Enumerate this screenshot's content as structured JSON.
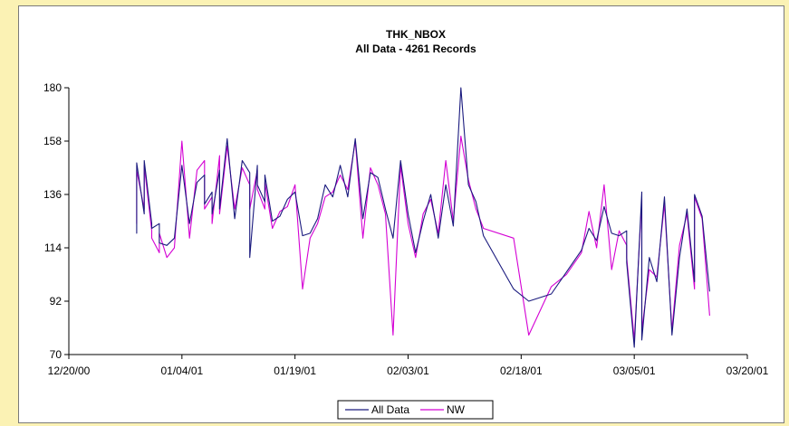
{
  "colors": {
    "background": "#fbf2b4",
    "all_data": "#1a1a7e",
    "nw": "#d400d4"
  },
  "chart_data": {
    "type": "line",
    "title": "THK_NBOX",
    "subtitle": "All Data - 4261 Records",
    "xlabel": "",
    "ylabel": "",
    "x_ticks": [
      "12/20/00",
      "01/04/01",
      "01/19/01",
      "02/03/01",
      "02/18/01",
      "03/05/01",
      "03/20/01"
    ],
    "y_ticks": [
      "70",
      "92",
      "114",
      "136",
      "158",
      "180"
    ],
    "xlim": [
      "2000-12-20",
      "2001-03-20"
    ],
    "ylim": [
      70,
      180
    ],
    "grid": false,
    "legend_position": "bottom",
    "series": [
      {
        "name": "All Data",
        "color": "#1a1a7e",
        "x": [
          "2000-12-29",
          "2000-12-29",
          "2000-12-29",
          "2000-12-30",
          "2000-12-30",
          "2000-12-31",
          "2000-12-31",
          "2001-01-01",
          "2001-01-01",
          "2001-01-02",
          "2001-01-03",
          "2001-01-04",
          "2001-01-05",
          "2001-01-06",
          "2001-01-07",
          "2001-01-07",
          "2001-01-08",
          "2001-01-08",
          "2001-01-09",
          "2001-01-09",
          "2001-01-10",
          "2001-01-11",
          "2001-01-12",
          "2001-01-13",
          "2001-01-13",
          "2001-01-14",
          "2001-01-14",
          "2001-01-15",
          "2001-01-15",
          "2001-01-16",
          "2001-01-17",
          "2001-01-18",
          "2001-01-19",
          "2001-01-20",
          "2001-01-21",
          "2001-01-22",
          "2001-01-23",
          "2001-01-24",
          "2001-01-25",
          "2001-01-26",
          "2001-01-27",
          "2001-01-28",
          "2001-01-29",
          "2001-01-30",
          "2001-01-31",
          "2001-02-01",
          "2001-02-02",
          "2001-02-03",
          "2001-02-04",
          "2001-02-05",
          "2001-02-06",
          "2001-02-07",
          "2001-02-08",
          "2001-02-09",
          "2001-02-10",
          "2001-02-11",
          "2001-02-12",
          "2001-02-13",
          "2001-02-17",
          "2001-02-19",
          "2001-02-22",
          "2001-02-24",
          "2001-02-26",
          "2001-02-27",
          "2001-02-28",
          "2001-03-01",
          "2001-03-02",
          "2001-03-03",
          "2001-03-04",
          "2001-03-04",
          "2001-03-05",
          "2001-03-06",
          "2001-03-06",
          "2001-03-07",
          "2001-03-08",
          "2001-03-09",
          "2001-03-10",
          "2001-03-11",
          "2001-03-12",
          "2001-03-13",
          "2001-03-13",
          "2001-03-14",
          "2001-03-15"
        ],
        "values": [
          140,
          120,
          149,
          128,
          150,
          124,
          122,
          124,
          116,
          115,
          118,
          148,
          124,
          141,
          144,
          132,
          137,
          128,
          146,
          130,
          159,
          126,
          150,
          145,
          110,
          148,
          140,
          133,
          144,
          125,
          127,
          134,
          137,
          119,
          120,
          126,
          140,
          135,
          148,
          135,
          159,
          126,
          145,
          143,
          130,
          118,
          150,
          128,
          112,
          125,
          136,
          118,
          140,
          123,
          180,
          140,
          133,
          119,
          97,
          92,
          95,
          104,
          113,
          122,
          117,
          131,
          120,
          119,
          121,
          108,
          73,
          137,
          76,
          110,
          100,
          135,
          78,
          110,
          130,
          100,
          136,
          127,
          96
        ]
      },
      {
        "name": "NW",
        "color": "#d400d4",
        "x": [
          "2000-12-29",
          "2000-12-29",
          "2000-12-29",
          "2000-12-30",
          "2000-12-30",
          "2000-12-31",
          "2000-12-31",
          "2001-01-01",
          "2001-01-01",
          "2001-01-02",
          "2001-01-03",
          "2001-01-04",
          "2001-01-05",
          "2001-01-06",
          "2001-01-07",
          "2001-01-07",
          "2001-01-08",
          "2001-01-08",
          "2001-01-09",
          "2001-01-09",
          "2001-01-10",
          "2001-01-11",
          "2001-01-12",
          "2001-01-13",
          "2001-01-13",
          "2001-01-14",
          "2001-01-14",
          "2001-01-15",
          "2001-01-15",
          "2001-01-16",
          "2001-01-17",
          "2001-01-18",
          "2001-01-19",
          "2001-01-20",
          "2001-01-21",
          "2001-01-22",
          "2001-01-23",
          "2001-01-24",
          "2001-01-25",
          "2001-01-26",
          "2001-01-27",
          "2001-01-28",
          "2001-01-29",
          "2001-01-30",
          "2001-01-31",
          "2001-02-01",
          "2001-02-02",
          "2001-02-03",
          "2001-02-04",
          "2001-02-05",
          "2001-02-06",
          "2001-02-07",
          "2001-02-08",
          "2001-02-09",
          "2001-02-10",
          "2001-02-11",
          "2001-02-12",
          "2001-02-13",
          "2001-02-17",
          "2001-02-19",
          "2001-02-22",
          "2001-02-24",
          "2001-02-26",
          "2001-02-27",
          "2001-02-28",
          "2001-03-01",
          "2001-03-02",
          "2001-03-03",
          "2001-03-04",
          "2001-03-04",
          "2001-03-05",
          "2001-03-06",
          "2001-03-06",
          "2001-03-07",
          "2001-03-08",
          "2001-03-09",
          "2001-03-10",
          "2001-03-11",
          "2001-03-12",
          "2001-03-13",
          "2001-03-13",
          "2001-03-14",
          "2001-03-15"
        ],
        "values": [
          138,
          124,
          146,
          130,
          148,
          121,
          118,
          112,
          120,
          110,
          114,
          158,
          118,
          146,
          150,
          130,
          135,
          124,
          152,
          128,
          156,
          130,
          147,
          140,
          130,
          146,
          138,
          130,
          141,
          122,
          129,
          131,
          140,
          97,
          118,
          124,
          135,
          137,
          144,
          138,
          158,
          118,
          147,
          140,
          128,
          78,
          148,
          124,
          110,
          128,
          134,
          120,
          150,
          125,
          160,
          142,
          130,
          122,
          118,
          78,
          98,
          103,
          112,
          129,
          114,
          140,
          105,
          121,
          115,
          110,
          76,
          134,
          80,
          105,
          102,
          132,
          80,
          115,
          128,
          97,
          135,
          126,
          86
        ]
      }
    ]
  }
}
